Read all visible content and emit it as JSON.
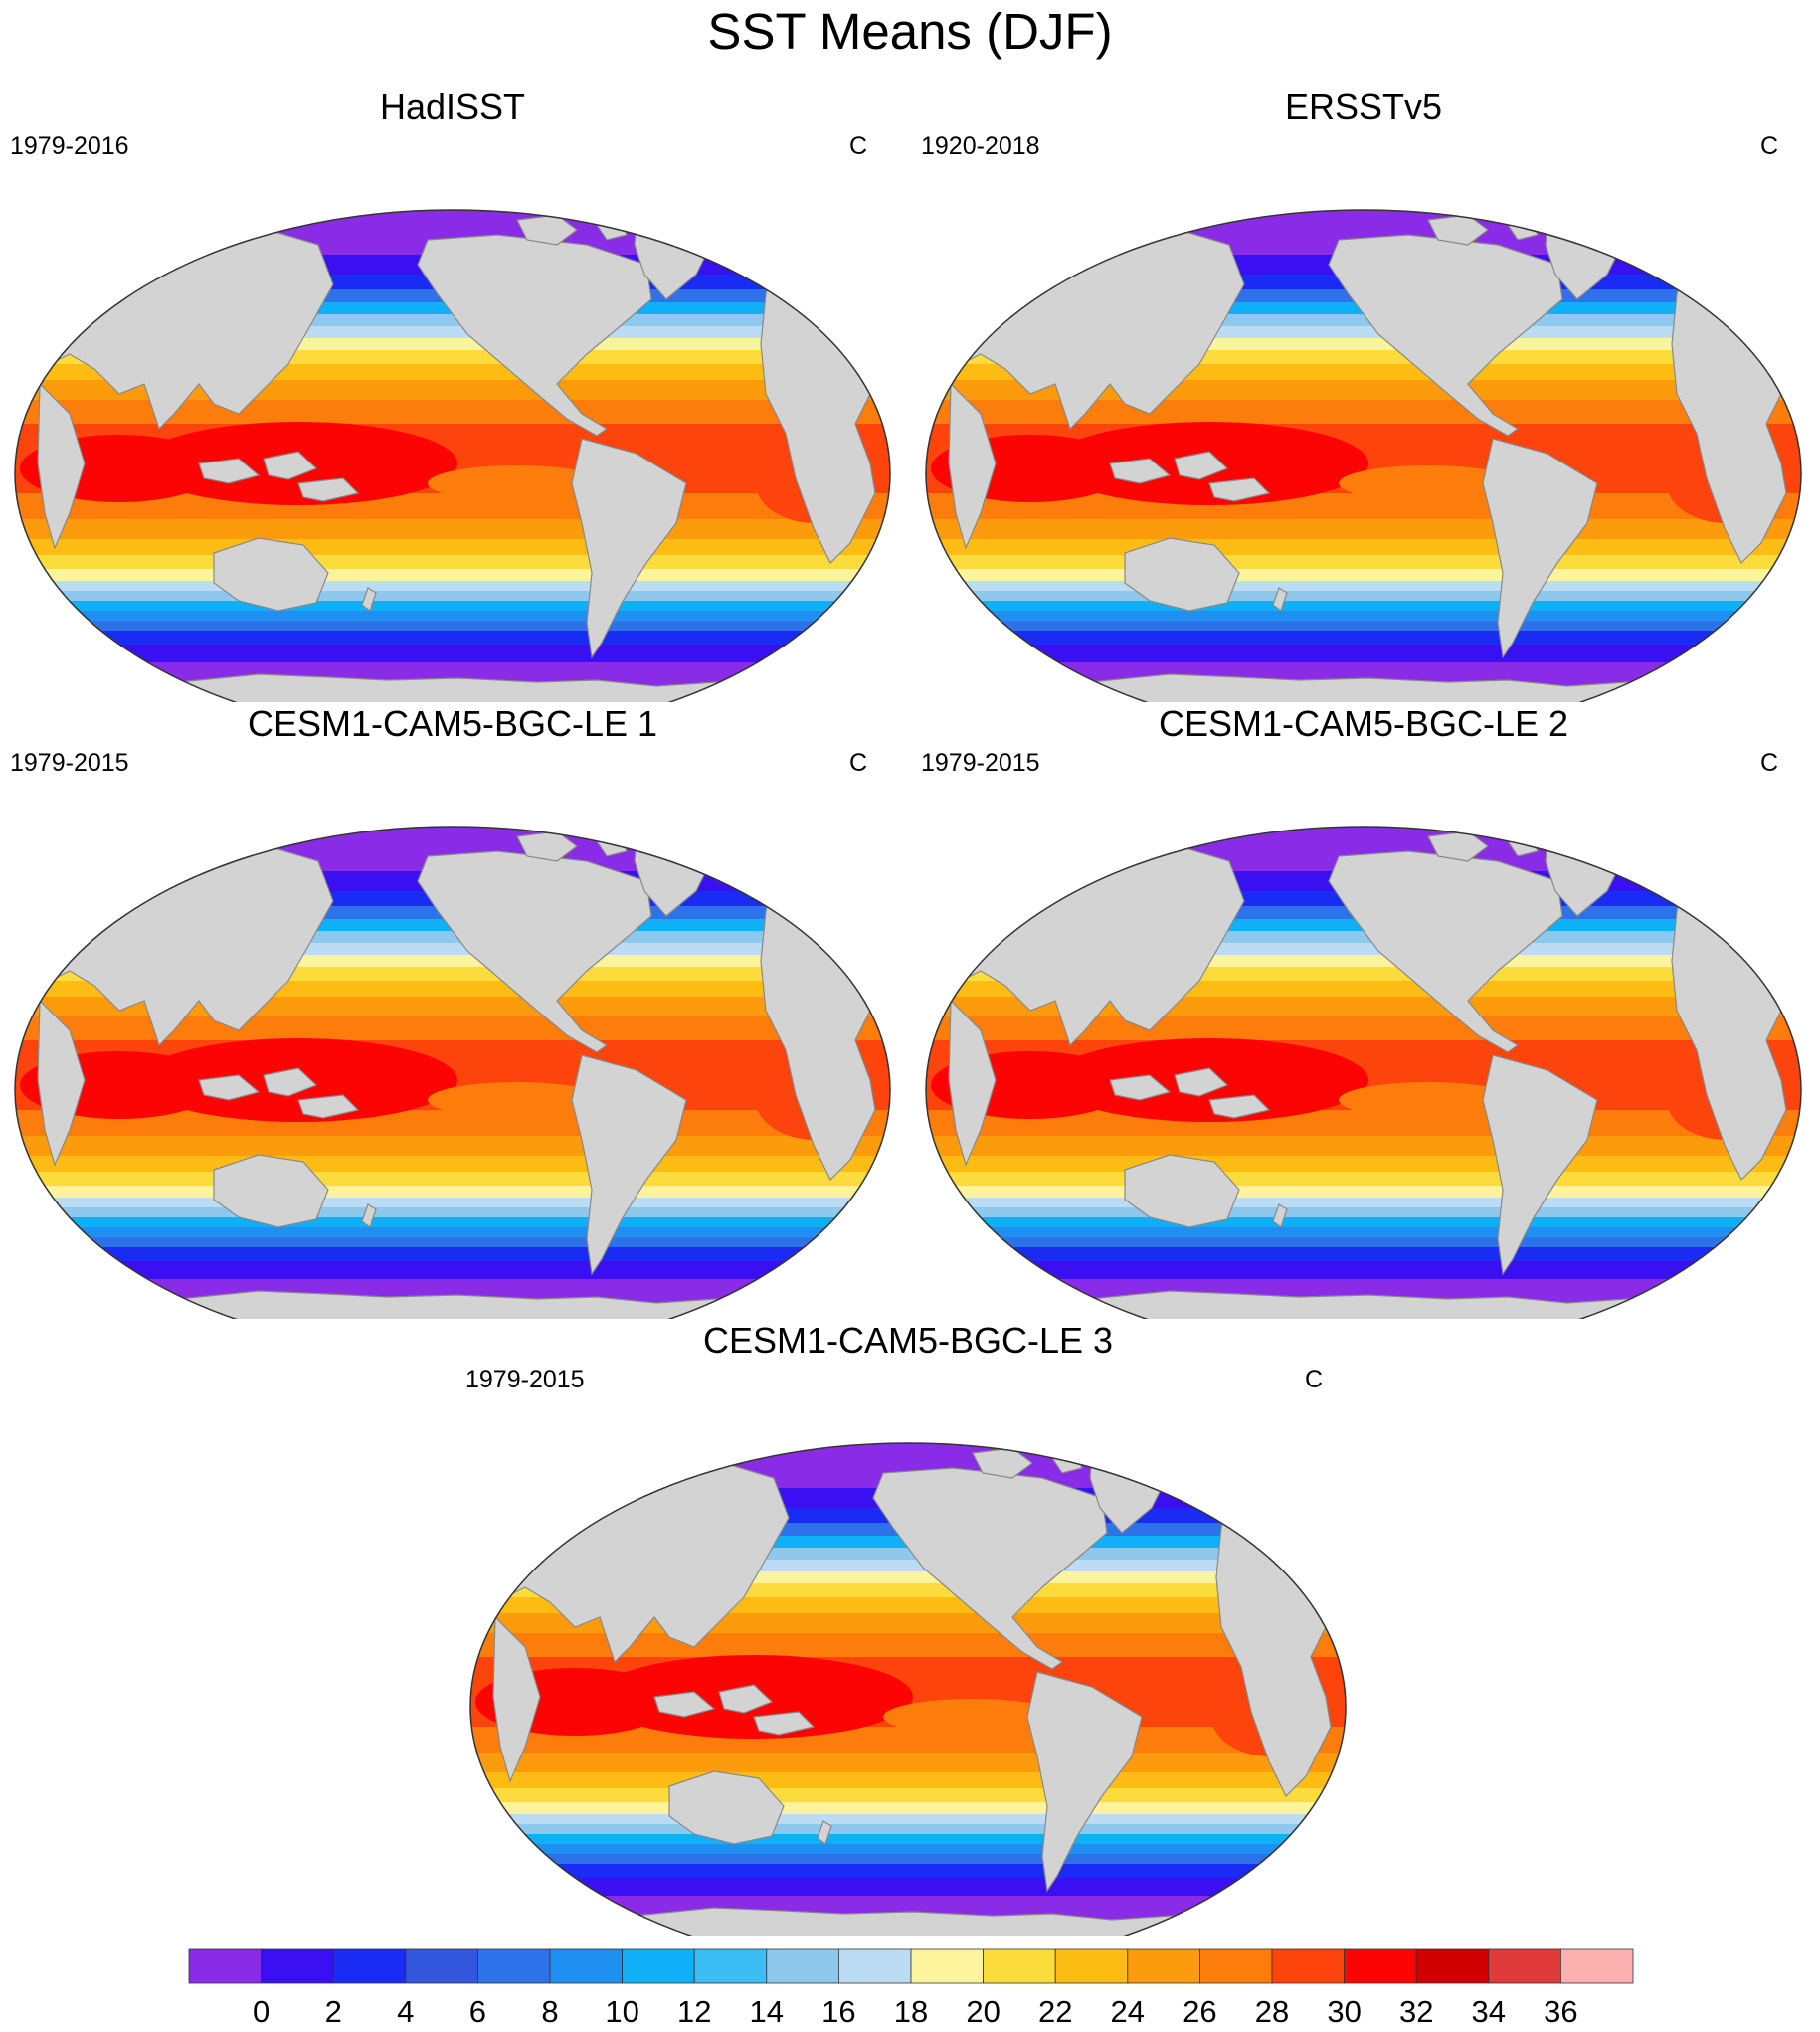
{
  "title": "SST Means (DJF)",
  "panels": [
    {
      "name": "HadISST",
      "period": "1979-2016",
      "units": "C"
    },
    {
      "name": "ERSSTv5",
      "period": "1920-2018",
      "units": "C"
    },
    {
      "name": "CESM1-CAM5-BGC-LE 1",
      "period": "1979-2015",
      "units": "C"
    },
    {
      "name": "CESM1-CAM5-BGC-LE 2",
      "period": "1979-2015",
      "units": "C"
    },
    {
      "name": "CESM1-CAM5-BGC-LE 3",
      "period": "1979-2015",
      "units": "C"
    }
  ],
  "colorbar": {
    "labels": [
      "0",
      "2",
      "4",
      "6",
      "8",
      "10",
      "12",
      "14",
      "16",
      "18",
      "20",
      "22",
      "24",
      "26",
      "28",
      "30",
      "32",
      "34",
      "36"
    ],
    "colors": [
      "#8a2be8",
      "#3a10f2",
      "#1a2cf4",
      "#3256dc",
      "#2e72ea",
      "#1f90f2",
      "#0fb0f8",
      "#3cbef4",
      "#8ec8ec",
      "#bcdcf4",
      "#fcf49c",
      "#fcdc3c",
      "#fcbc14",
      "#fc9c0c",
      "#fc7c0c",
      "#fc440c",
      "#fc0404",
      "#d00000",
      "#e03a3a",
      "#fcb0b0"
    ]
  },
  "map_colors": {
    "land": "#d3d3d3",
    "coast": "#888888",
    "ocean_border": "#333333"
  }
}
